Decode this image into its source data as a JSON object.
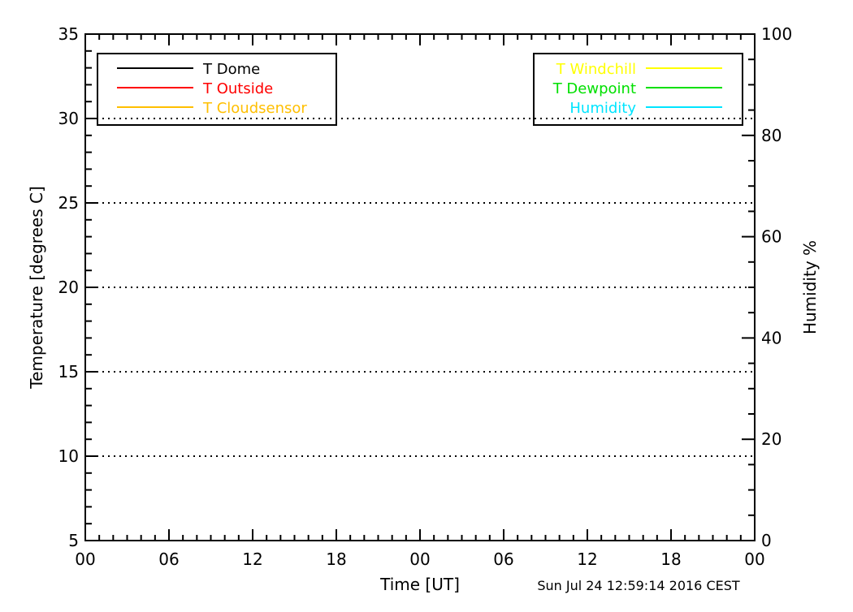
{
  "chart_data": {
    "type": "line",
    "title": "",
    "xlabel": "Time [UT]",
    "ylabel": "Temperature [degrees C]",
    "y2label": "Humidity %",
    "x_tick_labels": [
      "00",
      "06",
      "12",
      "18",
      "00",
      "06",
      "12",
      "18",
      "00"
    ],
    "x_range_hours": [
      0,
      48
    ],
    "ylim": [
      5,
      35
    ],
    "y_ticks": [
      5,
      10,
      15,
      20,
      25,
      30,
      35
    ],
    "y2lim": [
      0,
      100
    ],
    "y2_ticks": [
      0,
      20,
      40,
      60,
      80,
      100
    ],
    "grid_y_values": [
      10,
      15,
      20,
      25,
      30
    ],
    "grid": true,
    "legends": [
      {
        "placement": "top-left",
        "line_position": "left",
        "entries": [
          {
            "name": "T Dome",
            "color": "#000000"
          },
          {
            "name": "T Outside",
            "color": "#ff0000"
          },
          {
            "name": "T Cloudsensor",
            "color": "#ffbf00"
          }
        ]
      },
      {
        "placement": "top-right",
        "line_position": "right",
        "entries": [
          {
            "name": "T Windchill",
            "color": "#ffff00"
          },
          {
            "name": "T Dewpoint",
            "color": "#00e000"
          },
          {
            "name": "Humidity",
            "color": "#00e5ff"
          }
        ]
      }
    ],
    "series": [],
    "timestamp": "Sun Jul 24 12:59:14 2016 CEST"
  }
}
